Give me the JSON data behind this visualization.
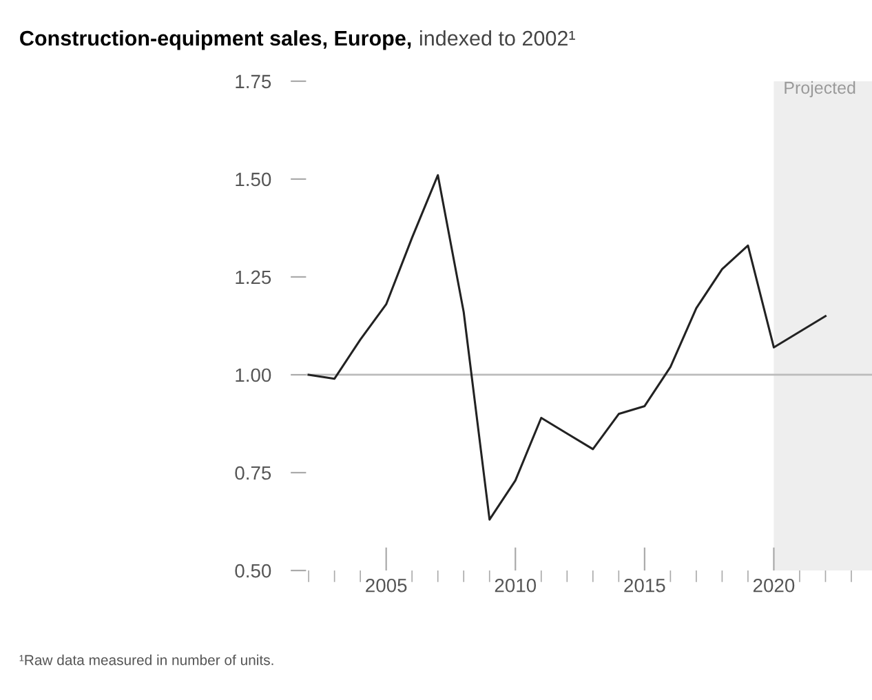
{
  "chart_data": {
    "type": "line",
    "title": "Construction-equipment sales, Europe,",
    "subtitle": "indexed to 2002¹",
    "x": [
      2002,
      2003,
      2004,
      2005,
      2006,
      2007,
      2008,
      2009,
      2010,
      2011,
      2012,
      2013,
      2014,
      2015,
      2016,
      2017,
      2018,
      2019,
      2020,
      2021,
      2022
    ],
    "series": [
      {
        "color": "#222222",
        "values": [
          1.0,
          0.99,
          1.09,
          1.18,
          1.35,
          1.51,
          1.16,
          0.63,
          0.73,
          0.89,
          0.85,
          0.81,
          0.9,
          0.92,
          1.02,
          1.17,
          1.27,
          1.33,
          1.07,
          1.11,
          1.15
        ]
      }
    ],
    "xlim": [
      2001.9,
      2023.8
    ],
    "ylim": [
      0.5,
      1.75
    ],
    "xticks": [
      {
        "value": 2002,
        "label": null
      },
      {
        "value": 2003,
        "label": null
      },
      {
        "value": 2004,
        "label": null
      },
      2005,
      {
        "value": 2006,
        "label": null
      },
      {
        "value": 2007,
        "label": null
      },
      {
        "value": 2008,
        "label": null
      },
      {
        "value": 2009,
        "label": null
      },
      2010,
      {
        "value": 2011,
        "label": null
      },
      {
        "value": 2012,
        "label": null
      },
      {
        "value": 2013,
        "label": null
      },
      {
        "value": 2014,
        "label": null
      },
      2015,
      {
        "value": 2016,
        "label": null
      },
      {
        "value": 2017,
        "label": null
      },
      {
        "value": 2018,
        "label": null
      },
      {
        "value": 2019,
        "label": null
      },
      2020,
      {
        "value": 2021,
        "label": null
      },
      {
        "value": 2022,
        "label": null
      },
      {
        "value": 2023,
        "label": null
      }
    ],
    "yticks": [
      {
        "value": 0.5,
        "label": "0.50"
      },
      {
        "value": 0.75,
        "label": "0.75"
      },
      {
        "value": 1.0,
        "label": "1.00"
      },
      {
        "value": 1.25,
        "label": "1.25"
      },
      {
        "value": 1.5,
        "label": "1.50"
      },
      {
        "value": 1.75,
        "label": "1.75"
      }
    ],
    "ref_lines": [
      {
        "axis": "y",
        "value": 1.0,
        "color": "#bbbbbb"
      }
    ],
    "bands": [
      {
        "axis": "x",
        "from": 2020,
        "to": 2023.8,
        "label": "Projected",
        "color": "#eeeeee"
      }
    ],
    "annotations": [
      "¹Raw data measured in number of units."
    ],
    "grid": false,
    "marker": "none",
    "line_style": "solid"
  }
}
